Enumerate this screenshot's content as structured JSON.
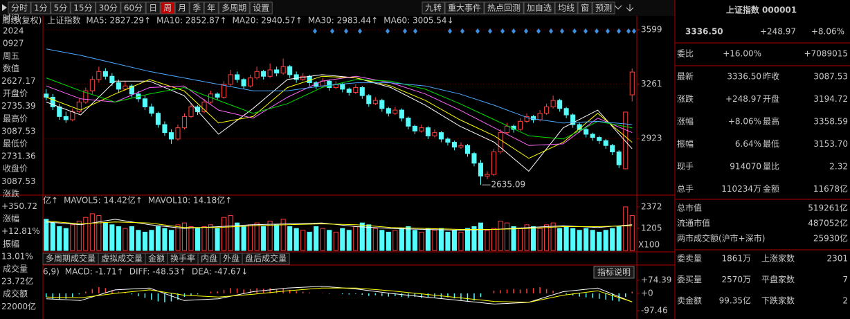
{
  "toolbar": {
    "periods": [
      "分时",
      "1分",
      "5分",
      "15分",
      "30分",
      "60分",
      "日",
      "周",
      "月",
      "季",
      "年",
      "多周期",
      "设置"
    ],
    "tools": [
      "九转",
      "重大事件",
      "热点回测",
      "加自选",
      "均线",
      "窗",
      "预测"
    ]
  },
  "left_panel": {
    "items": [
      "时间",
      "2024",
      "0927",
      "周五",
      "数值",
      "2627.17",
      "开盘价",
      "2735.39",
      "最高价",
      "3087.53",
      "最低价",
      "2731.36",
      "收盘价",
      "3087.53",
      "涨跌",
      "+350.72",
      "涨幅",
      "+12.81%",
      "振幅",
      "13.01%",
      "成交量",
      "23.72亿",
      "成交额",
      "22000亿"
    ]
  },
  "kline": {
    "header": [
      "周线(复权)",
      "上证指数",
      "MA5: 2827.29↑",
      "MA10: 2852.87↑",
      "MA20: 2940.57↑",
      "MA30: 2983.44↑",
      "MA60: 3005.54↓"
    ],
    "ylim": [
      2580,
      3625
    ],
    "yticks": [
      3599,
      3261,
      2923
    ],
    "candles": [
      [
        3200,
        3230,
        3160,
        3180
      ],
      [
        3180,
        3200,
        3100,
        3120
      ],
      [
        3120,
        3140,
        3040,
        3060
      ],
      [
        3060,
        3090,
        3020,
        3040
      ],
      [
        3040,
        3110,
        3030,
        3090
      ],
      [
        3090,
        3170,
        3080,
        3150
      ],
      [
        3150,
        3240,
        3140,
        3220
      ],
      [
        3220,
        3310,
        3200,
        3290
      ],
      [
        3290,
        3370,
        3270,
        3340
      ],
      [
        3340,
        3360,
        3290,
        3310
      ],
      [
        3310,
        3330,
        3250,
        3270
      ],
      [
        3270,
        3290,
        3210,
        3230
      ],
      [
        3230,
        3280,
        3220,
        3250
      ],
      [
        3250,
        3260,
        3180,
        3200
      ],
      [
        3200,
        3220,
        3150,
        3170
      ],
      [
        3170,
        3190,
        3100,
        3120
      ],
      [
        3120,
        3140,
        3060,
        3080
      ],
      [
        3080,
        3090,
        2990,
        3010
      ],
      [
        3010,
        3030,
        2940,
        2960
      ],
      [
        2960,
        2980,
        2890,
        2920
      ],
      [
        2920,
        3010,
        2910,
        2990
      ],
      [
        2990,
        3080,
        2980,
        3060
      ],
      [
        3060,
        3140,
        3050,
        3120
      ],
      [
        3120,
        3130,
        3070,
        3090
      ],
      [
        3090,
        3170,
        3080,
        3150
      ],
      [
        3150,
        3220,
        3140,
        3200
      ],
      [
        3200,
        3210,
        3160,
        3180
      ],
      [
        3180,
        3280,
        3170,
        3260
      ],
      [
        3260,
        3350,
        3250,
        3320
      ],
      [
        3320,
        3340,
        3270,
        3290
      ],
      [
        3290,
        3300,
        3230,
        3250
      ],
      [
        3250,
        3320,
        3240,
        3300
      ],
      [
        3300,
        3370,
        3290,
        3340
      ],
      [
        3340,
        3350,
        3290,
        3310
      ],
      [
        3310,
        3390,
        3300,
        3350
      ],
      [
        3350,
        3370,
        3310,
        3330
      ],
      [
        3330,
        3420,
        3320,
        3370
      ],
      [
        3370,
        3380,
        3300,
        3320
      ],
      [
        3320,
        3340,
        3270,
        3290
      ],
      [
        3290,
        3330,
        3280,
        3310
      ],
      [
        3310,
        3320,
        3250,
        3270
      ],
      [
        3270,
        3280,
        3230,
        3250
      ],
      [
        3250,
        3300,
        3240,
        3280
      ],
      [
        3280,
        3290,
        3220,
        3240
      ],
      [
        3240,
        3280,
        3230,
        3260
      ],
      [
        3260,
        3270,
        3210,
        3230
      ],
      [
        3230,
        3240,
        3190,
        3210
      ],
      [
        3210,
        3260,
        3200,
        3240
      ],
      [
        3240,
        3250,
        3170,
        3190
      ],
      [
        3190,
        3200,
        3120,
        3140
      ],
      [
        3140,
        3180,
        3130,
        3160
      ],
      [
        3160,
        3170,
        3090,
        3110
      ],
      [
        3110,
        3120,
        3060,
        3080
      ],
      [
        3080,
        3120,
        3070,
        3100
      ],
      [
        3100,
        3110,
        3030,
        3050
      ],
      [
        3050,
        3060,
        2980,
        3000
      ],
      [
        3000,
        3010,
        2950,
        2970
      ],
      [
        2970,
        3010,
        2960,
        2990
      ],
      [
        2990,
        3000,
        2920,
        2940
      ],
      [
        2940,
        2980,
        2930,
        2960
      ],
      [
        2960,
        2970,
        2900,
        2920
      ],
      [
        2920,
        2930,
        2880,
        2900
      ],
      [
        2900,
        2910,
        2850,
        2870
      ],
      [
        2870,
        2900,
        2860,
        2880
      ],
      [
        2880,
        2890,
        2810,
        2830
      ],
      [
        2830,
        2840,
        2750,
        2770
      ],
      [
        2770,
        2790,
        2635.09,
        2690
      ],
      [
        2690,
        2720,
        2670,
        2700
      ],
      [
        2700,
        2860,
        2690,
        2840
      ],
      [
        2840,
        2980,
        2830,
        2960
      ],
      [
        2960,
        3020,
        2950,
        3000
      ],
      [
        3000,
        3010,
        2960,
        2980
      ],
      [
        2980,
        3050,
        2970,
        3030
      ],
      [
        3030,
        3080,
        3020,
        3060
      ],
      [
        3060,
        3070,
        3020,
        3040
      ],
      [
        3040,
        3100,
        3030,
        3080
      ],
      [
        3080,
        3140,
        3070,
        3120
      ],
      [
        3120,
        3190,
        3110,
        3160
      ],
      [
        3160,
        3170,
        3090,
        3110
      ],
      [
        3110,
        3120,
        3050,
        3070
      ],
      [
        3070,
        3080,
        2990,
        3010
      ],
      [
        3010,
        3020,
        2960,
        2980
      ],
      [
        2980,
        2990,
        2930,
        2950
      ],
      [
        2950,
        2960,
        2910,
        2930
      ],
      [
        2930,
        2940,
        2890,
        2910
      ],
      [
        2910,
        2920,
        2860,
        2880
      ],
      [
        2880,
        2890,
        2820,
        2840
      ],
      [
        2840,
        2850,
        2740,
        2760
      ],
      [
        2735.39,
        3087.53,
        2731.36,
        3087.53
      ],
      [
        3194.72,
        3358.59,
        3153.7,
        3336.5
      ]
    ],
    "ma": [
      {
        "color": "#ffffff",
        "values": [
          3150,
          3070,
          3280,
          3280,
          3190,
          2950,
          3110,
          3290,
          3320,
          3300,
          3240,
          3130,
          3000,
          2900,
          2720,
          2990,
          3100,
          2860
        ]
      },
      {
        "color": "#ffff00",
        "values": [
          3180,
          3100,
          3200,
          3290,
          3220,
          3020,
          3060,
          3240,
          3310,
          3300,
          3250,
          3160,
          3040,
          2940,
          2800,
          2900,
          3080,
          2900
        ]
      },
      {
        "color": "#ff66ff",
        "values": [
          3250,
          3170,
          3150,
          3240,
          3250,
          3100,
          3050,
          3180,
          3280,
          3310,
          3270,
          3200,
          3100,
          2990,
          2880,
          2890,
          3050,
          2960
        ]
      },
      {
        "color": "#00e000",
        "values": [
          3300,
          3220,
          3150,
          3200,
          3240,
          3160,
          3080,
          3140,
          3240,
          3290,
          3280,
          3230,
          3140,
          3040,
          2940,
          2920,
          3030,
          2990
        ]
      },
      {
        "color": "#4aa8ff",
        "values": [
          3480,
          3440,
          3390,
          3340,
          3300,
          3260,
          3220,
          3220,
          3250,
          3270,
          3270,
          3250,
          3200,
          3130,
          3050,
          3020,
          3030,
          3010
        ]
      }
    ]
  },
  "volume": {
    "header": [
      "亿↑",
      "MAVOL5: 14.42亿↑",
      "MAVOL10: 14.18亿↑"
    ],
    "ylim": [
      0,
      2900
    ],
    "yticks": [
      2372,
      1205
    ],
    "unit": "X100",
    "values": [
      1700,
      1500,
      1300,
      1200,
      1400,
      1600,
      1800,
      2000,
      1900,
      1500,
      1400,
      1300,
      1200,
      1300,
      1100,
      1000,
      1100,
      1300,
      1200,
      1100,
      1400,
      1500,
      1300,
      1200,
      1300,
      1400,
      1200,
      1800,
      1900,
      1500,
      1300,
      1400,
      1500,
      1300,
      1600,
      1400,
      1700,
      1300,
      1200,
      1100,
      1000,
      1300,
      1200,
      1100,
      1000,
      1200,
      1100,
      1300,
      1500,
      1400,
      1200,
      1100,
      1000,
      1100,
      1200,
      1300,
      1100,
      1000,
      1200,
      1100,
      1200,
      1000,
      1100,
      1000,
      1200,
      1300,
      1500,
      1100,
      1200,
      1600,
      1500,
      1300,
      1200,
      1400,
      1300,
      1200,
      1400,
      1500,
      1200,
      1300,
      1200,
      1100,
      1200,
      1100,
      1000,
      1100,
      1200,
      1300,
      2372,
      1900
    ],
    "ma": [
      {
        "color": "#ffffff",
        "values": [
          1550,
          1400,
          1700,
          1400,
          1200,
          1300,
          1400,
          1450,
          1500,
          1300,
          1200,
          1150,
          1100,
          1150,
          1250,
          1350,
          1250,
          1400
        ]
      },
      {
        "color": "#ffff00",
        "values": [
          1600,
          1450,
          1550,
          1500,
          1250,
          1250,
          1350,
          1400,
          1450,
          1400,
          1250,
          1200,
          1150,
          1150,
          1200,
          1300,
          1300,
          1350
        ]
      }
    ]
  },
  "tabs": [
    "多周期成交量",
    "虚拟成交量",
    "金额",
    "换手率",
    "内盘",
    "外盘",
    "盘后成交量"
  ],
  "help_button": "指标说明",
  "macd": {
    "header": [
      "6,9)",
      "MACD: -1.71↑",
      "DIFF: -48.53↑",
      "DEA: -47.67↓"
    ],
    "ylim": [
      -144,
      152
    ],
    "yticks": [
      {
        "value": 74.39,
        "label": "+74.39"
      },
      {
        "value": 0,
        "label": "+0"
      },
      {
        "value": -97.46,
        "label": "-97.46"
      }
    ],
    "values": [
      -20,
      -30,
      -35,
      -30,
      -20,
      -5,
      10,
      25,
      35,
      30,
      20,
      10,
      5,
      -5,
      -15,
      -25,
      -35,
      -45,
      -50,
      -45,
      -35,
      -20,
      -10,
      -5,
      0,
      10,
      12,
      20,
      30,
      28,
      22,
      25,
      30,
      26,
      30,
      25,
      28,
      20,
      12,
      10,
      5,
      0,
      2,
      -2,
      0,
      -4,
      -6,
      -3,
      -8,
      -14,
      -10,
      -14,
      -18,
      -15,
      -20,
      -24,
      -20,
      -25,
      -20,
      -22,
      -25,
      -22,
      -28,
      -35,
      -45,
      -40,
      -20,
      0,
      15,
      18,
      22,
      25,
      22,
      26,
      30,
      35,
      25,
      15,
      5,
      -5,
      -12,
      -18,
      -22,
      -25,
      -30,
      -35,
      -40,
      -45,
      -20,
      10
    ],
    "lines": [
      {
        "color": "#ffffff",
        "values": [
          -30,
          -40,
          20,
          30,
          -40,
          -30,
          10,
          30,
          40,
          25,
          0,
          -20,
          -40,
          -60,
          -50,
          10,
          30,
          -48
        ]
      },
      {
        "color": "#ffff00",
        "values": [
          -20,
          -25,
          0,
          20,
          -10,
          -20,
          -5,
          15,
          30,
          30,
          15,
          -5,
          -25,
          -45,
          -50,
          -10,
          15,
          -47
        ]
      }
    ]
  },
  "quote": {
    "title": "上证指数 000001",
    "price": "3336.50",
    "change": "+248.97",
    "change_pct": "+8.06%",
    "ratio": [
      "委比",
      "+16.00%",
      "+7089015"
    ],
    "rows": [
      [
        "最新",
        "3336.50",
        "昨收",
        "3087.53"
      ],
      [
        "涨跌",
        "+248.97",
        "开盘",
        "3194.72"
      ],
      [
        "涨幅",
        "+8.06%",
        "最高",
        "3358.59"
      ],
      [
        "振幅",
        "6.64%",
        "最低",
        "3153.70"
      ],
      [
        "现手",
        "914070",
        "量比",
        "2.32"
      ],
      [
        "总手",
        "110234万",
        "金额",
        "11678亿"
      ]
    ],
    "market": [
      [
        "总市值",
        "519261亿"
      ],
      [
        "流通市值",
        "487052亿"
      ],
      [
        "两市成交额(沪市+深市)",
        "25930亿"
      ]
    ],
    "stats": [
      [
        "委卖量",
        "1861万",
        "上涨家数",
        "2301"
      ],
      [
        "委买量",
        "2570万",
        "平盘家数",
        "7"
      ],
      [
        "卖金额",
        "99.35亿",
        "下跌家数",
        "2"
      ]
    ]
  }
}
